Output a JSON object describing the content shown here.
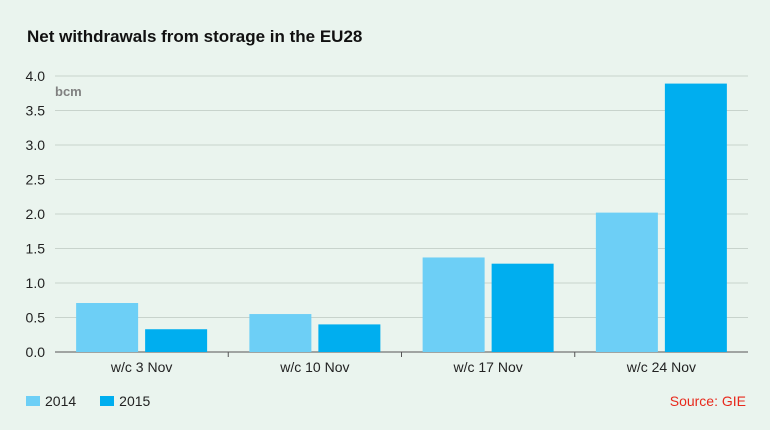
{
  "chart_data": {
    "type": "bar",
    "title": "Net withdrawals from storage in the EU28",
    "ylabel": "bcm",
    "xlabel": "",
    "categories": [
      "w/c 3 Nov",
      "w/c 10 Nov",
      "w/c 17 Nov",
      "w/c 24 Nov"
    ],
    "series": [
      {
        "name": "2014",
        "values": [
          0.71,
          0.55,
          1.37,
          2.02
        ],
        "color": "#6dcff6"
      },
      {
        "name": "2015",
        "values": [
          0.33,
          0.4,
          1.28,
          3.89
        ],
        "color": "#00aeef"
      }
    ],
    "ylim": [
      0,
      4.0
    ],
    "yticks": [
      "0.0",
      "0.5",
      "1.0",
      "1.5",
      "2.0",
      "2.5",
      "3.0",
      "3.5",
      "4.0"
    ],
    "grid": true,
    "legend_position": "bottom-left",
    "source": "Source: GIE"
  }
}
